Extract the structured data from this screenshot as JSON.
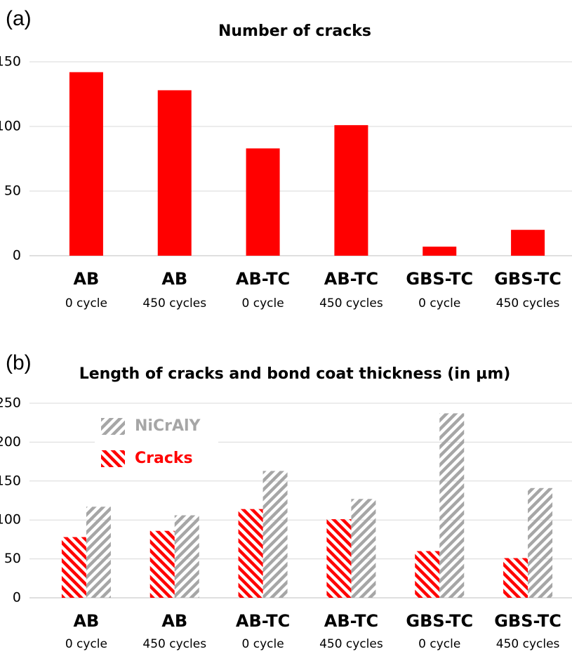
{
  "chart_data": [
    {
      "type": "bar",
      "panel_label": "(a)",
      "title": "Number of cracks",
      "categories": [
        "AB",
        "AB",
        "AB-TC",
        "AB-TC",
        "GBS-TC",
        "GBS-TC"
      ],
      "sublabels": [
        "0 cycle",
        "450 cycles",
        "0 cycle",
        "450 cycles",
        "0 cycle",
        "450 cycles"
      ],
      "values": [
        142,
        128,
        83,
        101,
        7,
        20
      ],
      "color": "#ff0000",
      "ylim": [
        0,
        150
      ],
      "yticks": [
        0,
        50,
        100,
        150
      ],
      "grid": true
    },
    {
      "type": "grouped_bar",
      "panel_label": "(b)",
      "title": "Length of cracks and bond coat thickness (in µm)",
      "categories": [
        "AB",
        "AB",
        "AB-TC",
        "AB-TC",
        "GBS-TC",
        "GBS-TC"
      ],
      "sublabels": [
        "0 cycle",
        "450 cycles",
        "0 cycle",
        "450 cycles",
        "0 cycle",
        "450 cycles"
      ],
      "series": [
        {
          "name": "Cracks",
          "color": "#ff0000",
          "hatch": "backslash",
          "values": [
            78,
            86,
            114,
            101,
            60,
            51
          ]
        },
        {
          "name": "NiCrAlY",
          "color": "#a6a6a6",
          "hatch": "slash",
          "values": [
            117,
            106,
            163,
            127,
            237,
            141
          ]
        }
      ],
      "ylim": [
        0,
        250
      ],
      "yticks": [
        0,
        50,
        100,
        150,
        200,
        250
      ],
      "grid": true,
      "legend": "upper left"
    }
  ]
}
